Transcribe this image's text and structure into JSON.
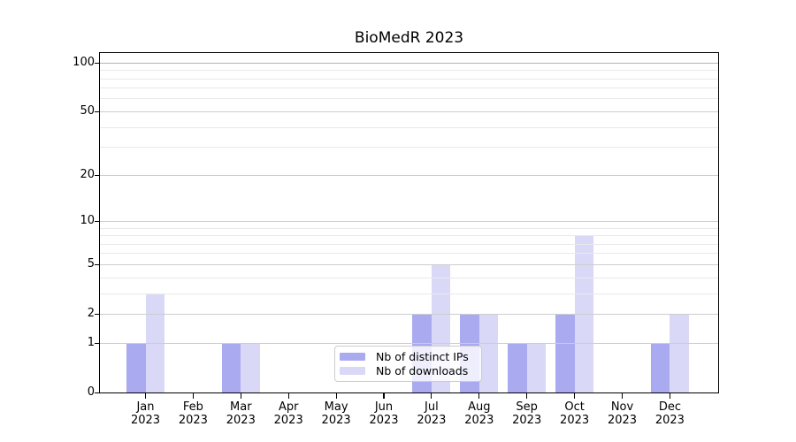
{
  "chart_data": {
    "type": "bar",
    "title": "BioMedR 2023",
    "x": {
      "months": [
        "Jan",
        "Feb",
        "Mar",
        "Apr",
        "May",
        "Jun",
        "Jul",
        "Aug",
        "Sep",
        "Oct",
        "Nov",
        "Dec"
      ],
      "year": "2023"
    },
    "series": [
      {
        "name": "Nb of distinct IPs",
        "color": "#aaaaf1",
        "values": [
          1,
          0,
          1,
          0,
          0,
          0,
          2,
          2,
          1,
          2,
          0,
          1
        ]
      },
      {
        "name": "Nb of downloads",
        "color": "#d9d9f7",
        "values": [
          3,
          0,
          1,
          0,
          0,
          0,
          5,
          2,
          1,
          8,
          0,
          2
        ]
      }
    ],
    "y_axis": {
      "scale": "log1p",
      "ticks": [
        0,
        1,
        2,
        5,
        10,
        20,
        50,
        100
      ],
      "minor_gridlines": [
        3,
        4,
        6,
        7,
        8,
        9,
        30,
        40,
        60,
        70,
        80,
        90
      ],
      "range": [
        0,
        115
      ]
    },
    "legend": {
      "position": "lower center"
    },
    "colors": {
      "grid_major": "#cdcdcd",
      "grid_minor": "#e9e9e9",
      "grid_top": "#b4b4b4",
      "axis": "#000000"
    }
  }
}
